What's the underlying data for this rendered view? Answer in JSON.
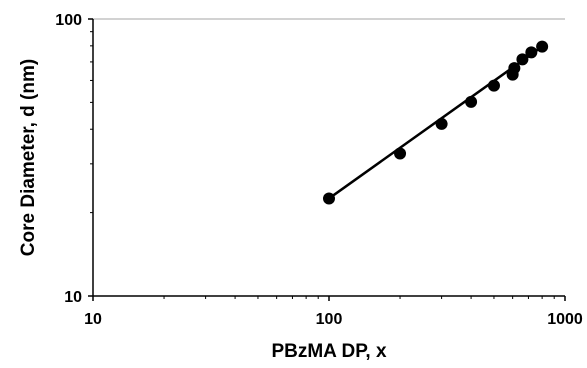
{
  "chart_data": {
    "type": "scatter",
    "x_scale": "log",
    "y_scale": "log",
    "xlim": [
      10,
      1000
    ],
    "ylim": [
      10,
      100
    ],
    "x_ticks": [
      10,
      100,
      1000
    ],
    "y_ticks": [
      10,
      100
    ],
    "x_tick_labels": [
      "10",
      "100",
      "1000"
    ],
    "y_tick_labels": [
      "10",
      "100"
    ],
    "xlabel": "PBzMA DP, x",
    "ylabel": "Core Diameter, d (nm)",
    "grid": "horizontal at y=100 only",
    "legend": "none",
    "colors": {
      "points": "#000000",
      "fit_line": "#000000",
      "axes": "#000000",
      "gridline": "#a6a6a6"
    },
    "series": [
      {
        "marker": "filled-circle",
        "x": [
          100,
          200,
          300,
          400,
          500,
          600,
          610,
          660,
          720,
          800
        ],
        "y": [
          22.5,
          32.7,
          41.8,
          50.2,
          57.5,
          63.0,
          66.5,
          71.5,
          75.8,
          79.5
        ]
      }
    ],
    "fit_line": {
      "x": [
        100,
        800
      ],
      "y": [
        22.5,
        79.5
      ]
    }
  }
}
